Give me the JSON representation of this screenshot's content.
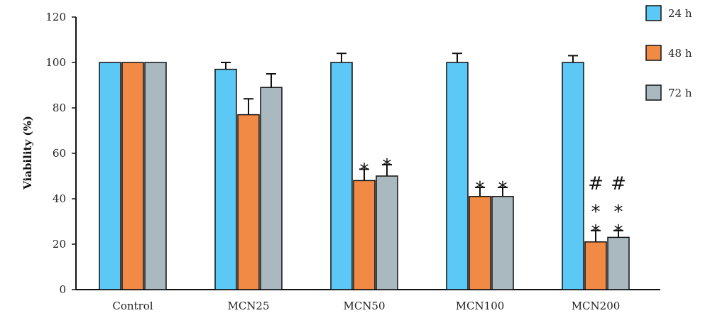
{
  "chart_data": {
    "type": "bar",
    "title": "",
    "xlabel": "",
    "ylabel": "Viability (%)",
    "ylim": [
      0,
      120
    ],
    "yticks": [
      0,
      20,
      40,
      60,
      80,
      100,
      120
    ],
    "grid": false,
    "legend_position": "right",
    "categories": [
      "Control",
      "MCN25",
      "MCN50",
      "MCN100",
      "MCN200"
    ],
    "series": [
      {
        "name": "24 h",
        "color": "#5bc8f5",
        "values": [
          100,
          97,
          100,
          100,
          100
        ],
        "errors": [
          0,
          3,
          4,
          4,
          3
        ]
      },
      {
        "name": "48 h",
        "color": "#f08a45",
        "values": [
          100,
          77,
          48,
          41,
          21
        ],
        "errors": [
          0,
          7,
          5,
          4,
          5
        ]
      },
      {
        "name": "72 h",
        "color": "#aab8c0",
        "values": [
          100,
          89,
          50,
          41,
          23
        ],
        "errors": [
          0,
          6,
          5,
          4,
          3
        ]
      }
    ],
    "annotations": [
      {
        "category": "MCN50",
        "series": "48 h",
        "text": "*"
      },
      {
        "category": "MCN50",
        "series": "72 h",
        "text": "*"
      },
      {
        "category": "MCN100",
        "series": "48 h",
        "text": "*"
      },
      {
        "category": "MCN100",
        "series": "72 h",
        "text": "*"
      },
      {
        "category": "MCN200",
        "series": "48 h",
        "text": "*"
      },
      {
        "category": "MCN200",
        "series": "48 h",
        "text": "*"
      },
      {
        "category": "MCN200",
        "series": "48 h",
        "text": "#"
      },
      {
        "category": "MCN200",
        "series": "72 h",
        "text": "*"
      },
      {
        "category": "MCN200",
        "series": "72 h",
        "text": "*"
      },
      {
        "category": "MCN200",
        "series": "72 h",
        "text": "#"
      }
    ]
  }
}
